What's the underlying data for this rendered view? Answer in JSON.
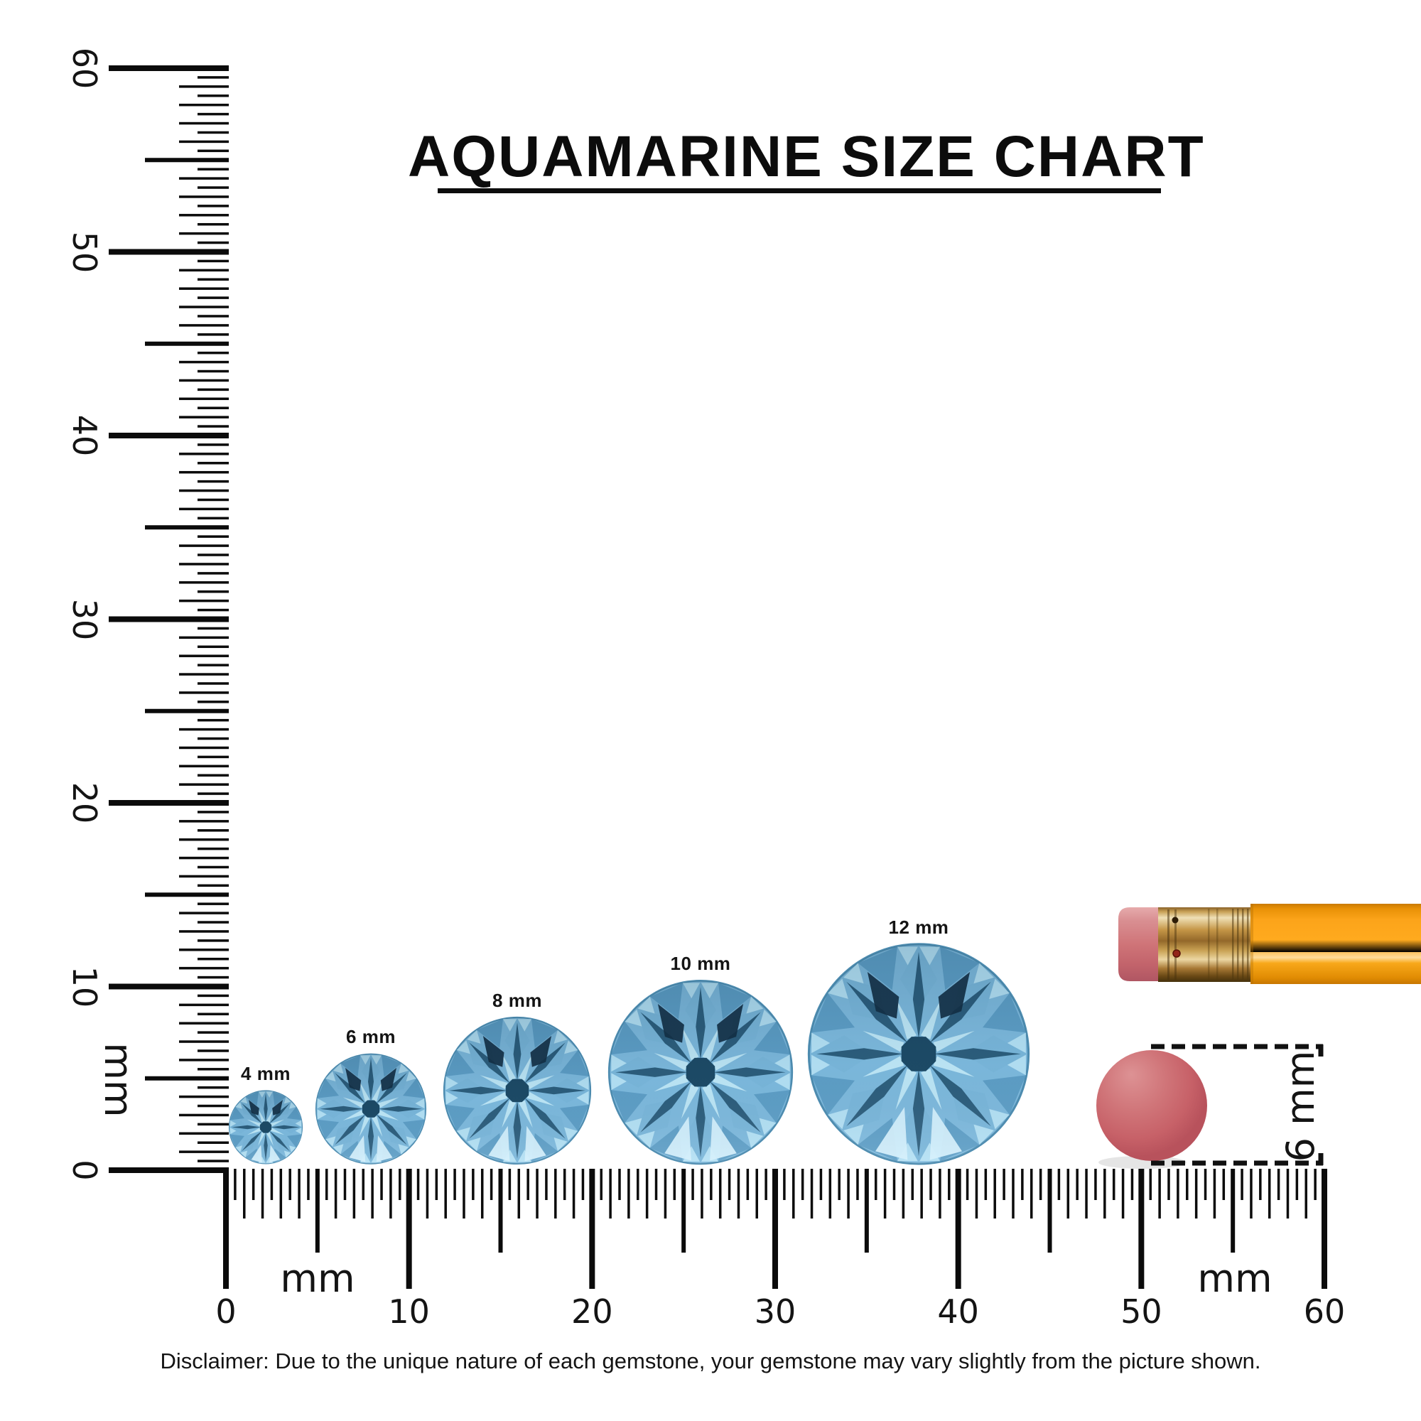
{
  "title": {
    "text": "AQUAMARINE SIZE CHART"
  },
  "rulers": {
    "unit_label": "mm",
    "vertical": {
      "labels": [
        "0",
        "10",
        "20",
        "30",
        "40",
        "50",
        "60"
      ]
    },
    "horizontal": {
      "labels": [
        "0",
        "10",
        "20",
        "30",
        "40",
        "50",
        "60"
      ],
      "unit_label_count": 2
    }
  },
  "gems": [
    {
      "label": "4 mm",
      "size_mm": 4
    },
    {
      "label": "6 mm",
      "size_mm": 6
    },
    {
      "label": "8 mm",
      "size_mm": 8
    },
    {
      "label": "10 mm",
      "size_mm": 10
    },
    {
      "label": "12 mm",
      "size_mm": 12
    }
  ],
  "reference": {
    "eraser_size_label": "6 mm"
  },
  "disclaimer": "Disclaimer: Due to the unique nature of each gemstone, your gemstone may vary slightly from the picture shown.",
  "colors": {
    "text": "#141414",
    "gem": {
      "base": "#7db9dd",
      "rim_light": "#b3e0f4",
      "rim_mid": "#5d9ec6",
      "bezel": "#79b6da",
      "ray_dark": "#1f4d6b",
      "star": "#bde6f6",
      "center": "#1d4a66",
      "navy": "#132f44",
      "bright": "#d3effc",
      "outline": "#4d8cb0"
    },
    "pencil": {
      "body": "#ffa81e",
      "body_highlight": "#ffdc9a",
      "ferrule": "#c9a254",
      "eraser": "#cf7478"
    },
    "eraser_disc": "#c9656b"
  },
  "chart_data": {
    "type": "size-comparison",
    "unit": "mm",
    "ruler_range_mm": [
      0,
      60
    ],
    "gem_sizes_mm": [
      4,
      6,
      8,
      10,
      12
    ],
    "reference_objects": [
      {
        "name": "pencil eraser disc",
        "size_mm": 6
      }
    ]
  }
}
